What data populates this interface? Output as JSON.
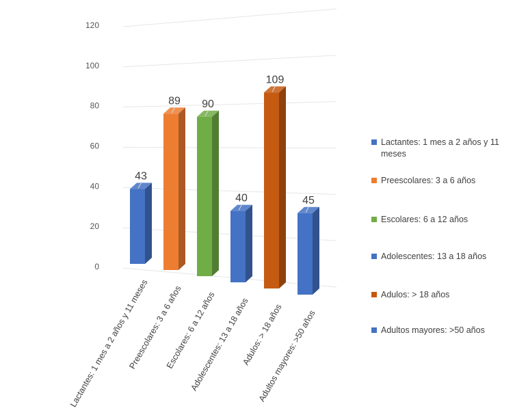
{
  "chart_data": {
    "type": "bar",
    "title": "",
    "xlabel": "",
    "ylabel": "",
    "ylim": [
      0,
      120
    ],
    "yticks": [
      0,
      20,
      40,
      60,
      80,
      100,
      120
    ],
    "grid": true,
    "legend_position": "right",
    "categories": [
      "Lactantes: 1 mes a 2 años y 11 meses",
      "Preescolares: 3 a 6 años",
      "Escolares: 6 a 12 años",
      "Adolescentes: 13 a 18 años",
      "Adulos: > 18 años",
      "Adultos mayores: >50 años"
    ],
    "values": [
      43,
      89,
      90,
      40,
      109,
      45
    ],
    "data_labels": [
      "43",
      "89",
      "90",
      "40",
      "109",
      "45"
    ],
    "colors": [
      "#4472C4",
      "#ED7D31",
      "#70AD47",
      "#4472C4",
      "#C55A11",
      "#4472C4"
    ],
    "legend": [
      "Lactantes: 1 mes a 2 años y 11 meses",
      "Preescolares: 3 a 6 años",
      "Escolares: 6 a 12 años",
      "Adolescentes: 13 a 18 años",
      "Adulos: > 18 años",
      "Adultos mayores: >50 años"
    ]
  }
}
